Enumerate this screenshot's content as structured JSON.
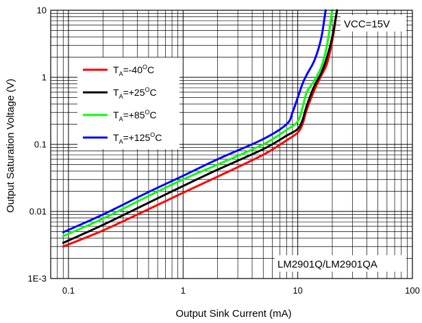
{
  "chart_data": {
    "type": "line",
    "xlabel": "Output Sink Current (mA)",
    "ylabel": "Output Saturation Voltage (V)",
    "xscale": "log",
    "yscale": "log",
    "xlim": [
      0.07,
      100
    ],
    "ylim": [
      0.001,
      10
    ],
    "grid": true,
    "x_ticks": [
      {
        "value": 0.1,
        "label": "0.1"
      },
      {
        "value": 1,
        "label": "1"
      },
      {
        "value": 10,
        "label": "10"
      },
      {
        "value": 100,
        "label": "100"
      }
    ],
    "y_ticks": [
      {
        "value": 0.001,
        "label": "1E-3"
      },
      {
        "value": 0.01,
        "label": "0.01"
      },
      {
        "value": 0.1,
        "label": "0.1"
      },
      {
        "value": 1,
        "label": "1"
      },
      {
        "value": 10,
        "label": "10"
      }
    ],
    "legend_position": "upper-left",
    "annotations": [
      "VCC=15V",
      "LM2901Q/LM2901QA"
    ],
    "series": [
      {
        "name": "TA=-40°C",
        "legend": {
          "main": "T",
          "sub": "A",
          "value": "=-40",
          "deg": "O",
          "unit": "C"
        },
        "color": "#ff0000",
        "x": [
          0.09,
          0.2,
          0.5,
          1,
          2,
          5,
          8,
          10,
          11,
          12,
          14,
          16,
          18,
          20,
          22
        ],
        "y": [
          0.003,
          0.0052,
          0.0108,
          0.019,
          0.033,
          0.07,
          0.115,
          0.15,
          0.2,
          0.33,
          0.65,
          1.05,
          1.6,
          3.5,
          10
        ]
      },
      {
        "name": "TA=+25°C",
        "legend": {
          "main": "T",
          "sub": "A",
          "value": "=+25",
          "deg": "O",
          "unit": "C"
        },
        "color": "#000000",
        "x": [
          0.09,
          0.2,
          0.5,
          1,
          2,
          5,
          8,
          10,
          11,
          12,
          14,
          16,
          18,
          20,
          22
        ],
        "y": [
          0.0034,
          0.0063,
          0.0135,
          0.024,
          0.042,
          0.085,
          0.135,
          0.17,
          0.23,
          0.38,
          0.75,
          1.15,
          2.0,
          4.0,
          10
        ]
      },
      {
        "name": "TA=+85°C",
        "legend": {
          "main": "T",
          "sub": "A",
          "value": "=+85",
          "deg": "O",
          "unit": "C"
        },
        "color": "#00ff00",
        "x": [
          0.09,
          0.2,
          0.5,
          1,
          2,
          5,
          8,
          10,
          11,
          12,
          14,
          16,
          18,
          20
        ],
        "y": [
          0.0043,
          0.0078,
          0.017,
          0.03,
          0.05,
          0.1,
          0.165,
          0.22,
          0.35,
          0.6,
          0.9,
          1.4,
          3.0,
          10
        ]
      },
      {
        "name": "TA=+125°C",
        "legend": {
          "main": "T",
          "sub": "A",
          "value": "=+125",
          "deg": "O",
          "unit": "C"
        },
        "color": "#0000ff",
        "x": [
          0.09,
          0.2,
          0.5,
          1,
          2,
          5,
          8,
          9,
          10,
          11,
          12,
          14,
          16,
          17.5
        ],
        "y": [
          0.0049,
          0.009,
          0.0195,
          0.034,
          0.06,
          0.12,
          0.2,
          0.3,
          0.5,
          0.8,
          1.1,
          1.8,
          3.8,
          10
        ]
      }
    ]
  }
}
